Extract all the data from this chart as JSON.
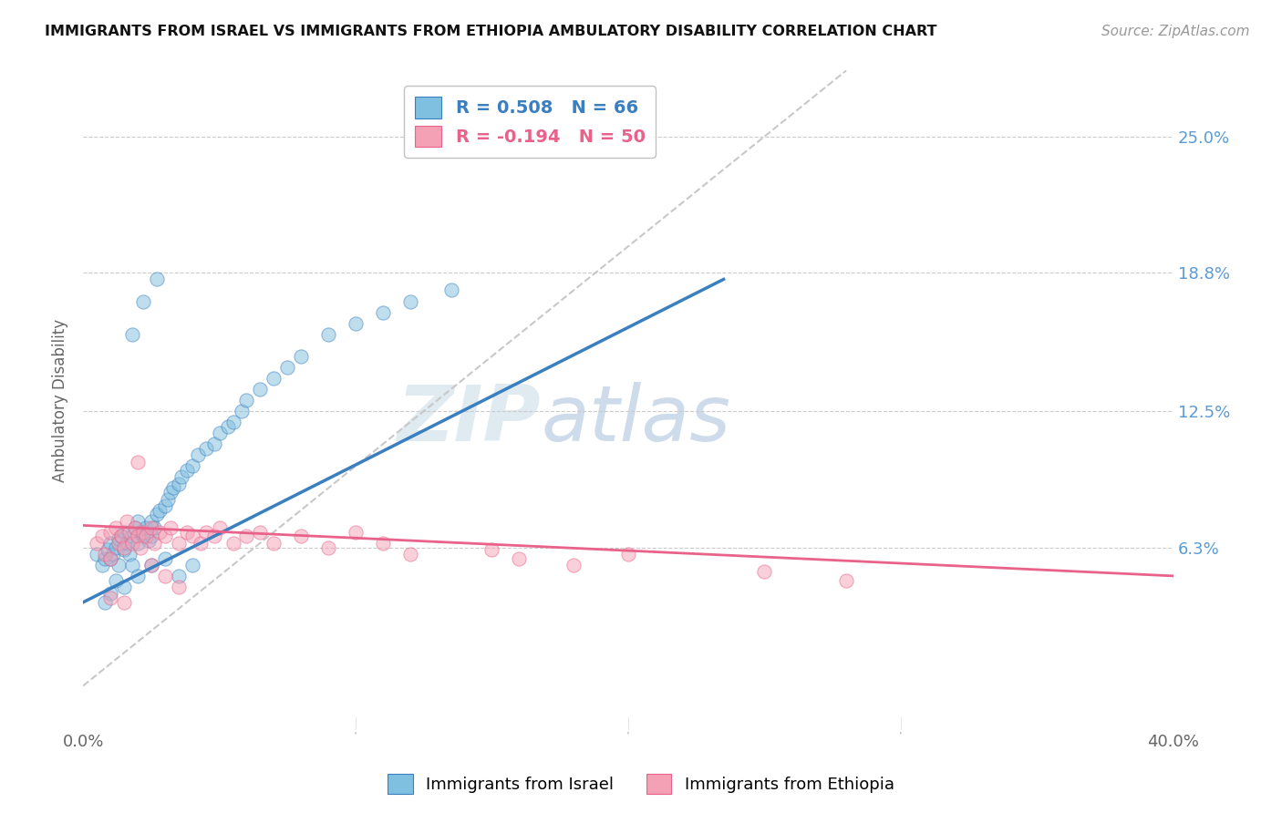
{
  "title": "IMMIGRANTS FROM ISRAEL VS IMMIGRANTS FROM ETHIOPIA AMBULATORY DISABILITY CORRELATION CHART",
  "source": "Source: ZipAtlas.com",
  "ylabel": "Ambulatory Disability",
  "x_range": [
    0.0,
    0.4
  ],
  "y_range": [
    -0.02,
    0.28
  ],
  "israel_R": 0.508,
  "israel_N": 66,
  "ethiopia_R": -0.194,
  "ethiopia_N": 50,
  "israel_color": "#7fbfdf",
  "ethiopia_color": "#f4a0b5",
  "israel_line_color": "#3a7fbf",
  "ethiopia_line_color": "#e8628a",
  "diagonal_color": "#c8c8c8",
  "legend_label_israel": "Immigrants from Israel",
  "legend_label_ethiopia": "Immigrants from Ethiopia",
  "watermark_zip": "ZIP",
  "watermark_atlas": "atlas",
  "y_tick_vals": [
    0.063,
    0.125,
    0.188,
    0.25
  ],
  "y_tick_labels": [
    "6.3%",
    "12.5%",
    "18.8%",
    "25.0%"
  ],
  "israel_scatter_x": [
    0.005,
    0.007,
    0.008,
    0.009,
    0.01,
    0.01,
    0.011,
    0.012,
    0.013,
    0.013,
    0.014,
    0.015,
    0.015,
    0.016,
    0.017,
    0.018,
    0.018,
    0.019,
    0.02,
    0.02,
    0.021,
    0.022,
    0.023,
    0.024,
    0.025,
    0.025,
    0.026,
    0.027,
    0.028,
    0.03,
    0.031,
    0.032,
    0.033,
    0.035,
    0.036,
    0.038,
    0.04,
    0.042,
    0.045,
    0.048,
    0.05,
    0.053,
    0.055,
    0.058,
    0.06,
    0.065,
    0.07,
    0.075,
    0.08,
    0.09,
    0.1,
    0.11,
    0.12,
    0.135,
    0.01,
    0.012,
    0.015,
    0.008,
    0.02,
    0.025,
    0.03,
    0.018,
    0.022,
    0.027,
    0.035,
    0.04
  ],
  "israel_scatter_y": [
    0.06,
    0.055,
    0.058,
    0.062,
    0.065,
    0.058,
    0.06,
    0.063,
    0.067,
    0.055,
    0.068,
    0.062,
    0.07,
    0.065,
    0.06,
    0.068,
    0.055,
    0.072,
    0.065,
    0.075,
    0.07,
    0.068,
    0.072,
    0.066,
    0.075,
    0.068,
    0.072,
    0.078,
    0.08,
    0.082,
    0.085,
    0.088,
    0.09,
    0.092,
    0.095,
    0.098,
    0.1,
    0.105,
    0.108,
    0.11,
    0.115,
    0.118,
    0.12,
    0.125,
    0.13,
    0.135,
    0.14,
    0.145,
    0.15,
    0.16,
    0.165,
    0.17,
    0.175,
    0.18,
    0.042,
    0.048,
    0.045,
    0.038,
    0.05,
    0.055,
    0.058,
    0.16,
    0.175,
    0.185,
    0.05,
    0.055
  ],
  "ethiopia_scatter_x": [
    0.005,
    0.007,
    0.008,
    0.01,
    0.01,
    0.012,
    0.013,
    0.014,
    0.015,
    0.016,
    0.017,
    0.018,
    0.019,
    0.02,
    0.021,
    0.022,
    0.023,
    0.025,
    0.026,
    0.028,
    0.03,
    0.032,
    0.035,
    0.038,
    0.04,
    0.043,
    0.045,
    0.048,
    0.05,
    0.055,
    0.06,
    0.065,
    0.07,
    0.08,
    0.09,
    0.1,
    0.11,
    0.12,
    0.15,
    0.16,
    0.18,
    0.2,
    0.25,
    0.28,
    0.01,
    0.015,
    0.02,
    0.025,
    0.03,
    0.035
  ],
  "ethiopia_scatter_y": [
    0.065,
    0.068,
    0.06,
    0.07,
    0.058,
    0.072,
    0.065,
    0.068,
    0.063,
    0.075,
    0.07,
    0.065,
    0.072,
    0.068,
    0.063,
    0.07,
    0.068,
    0.072,
    0.065,
    0.07,
    0.068,
    0.072,
    0.065,
    0.07,
    0.068,
    0.065,
    0.07,
    0.068,
    0.072,
    0.065,
    0.068,
    0.07,
    0.065,
    0.068,
    0.063,
    0.07,
    0.065,
    0.06,
    0.062,
    0.058,
    0.055,
    0.06,
    0.052,
    0.048,
    0.04,
    0.038,
    0.102,
    0.055,
    0.05,
    0.045
  ],
  "israel_line_x": [
    0.0,
    0.235
  ],
  "israel_line_y": [
    0.038,
    0.185
  ],
  "ethiopia_line_x": [
    0.0,
    0.4
  ],
  "ethiopia_line_y": [
    0.073,
    0.05
  ]
}
